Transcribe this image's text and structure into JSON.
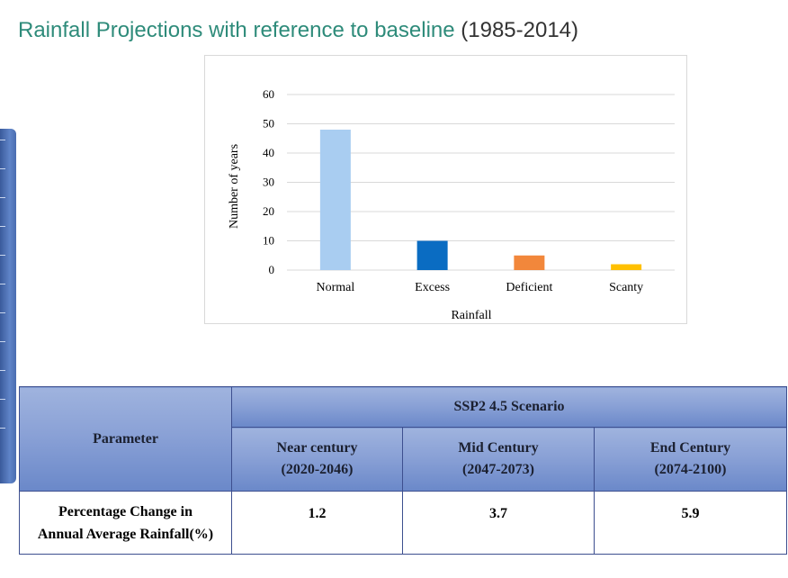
{
  "heading": {
    "accent": "Rainfall Projections with reference to baseline",
    "plain": "(1985-2014)"
  },
  "colors": {
    "accent": "#2e8b7a",
    "table_header": "#8aa1d6",
    "table_border": "#3d4f8f"
  },
  "chart_data": {
    "type": "bar",
    "categories": [
      "Normal",
      "Excess",
      "Deficient",
      "Scanty"
    ],
    "values": [
      48,
      10,
      5,
      2
    ],
    "bar_colors": [
      "#a9cdf1",
      "#0a6cc2",
      "#f2873b",
      "#ffc000"
    ],
    "xlabel": "Rainfall",
    "ylabel": "Number of years",
    "ylim": [
      0,
      60
    ],
    "yticks": [
      "0",
      "10",
      "20",
      "30",
      "40",
      "50",
      "60"
    ],
    "grid": true,
    "legend": "none"
  },
  "table": {
    "parameter_header": "Parameter",
    "scenario_header": "SSP2 4.5 Scenario",
    "periods": [
      {
        "name": "Near century",
        "range": "(2020-2046)"
      },
      {
        "name": "Mid Century",
        "range": "(2047-2073)"
      },
      {
        "name": "End Century",
        "range": "(2074-2100)"
      }
    ],
    "row_label_line1": "Percentage Change in",
    "row_label_line2": "Annual Average Rainfall(%)",
    "values": [
      "1.2",
      "3.7",
      "5.9"
    ]
  }
}
